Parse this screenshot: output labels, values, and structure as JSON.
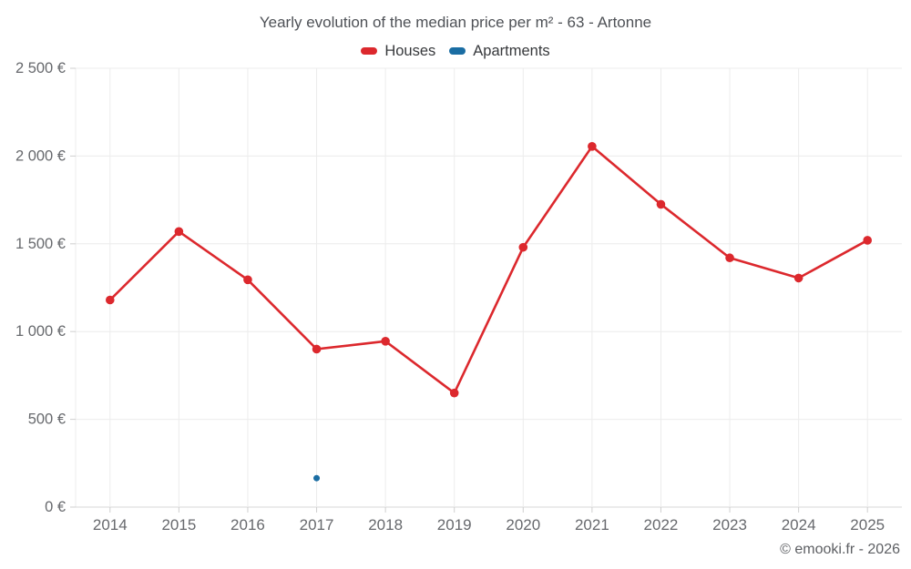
{
  "footer": "© emooki.fr - 2026",
  "chart_data": {
    "type": "line",
    "title": "Yearly evolution of the median price per m² - 63 - Artonne",
    "categories": [
      "2014",
      "2015",
      "2016",
      "2017",
      "2018",
      "2019",
      "2020",
      "2021",
      "2022",
      "2023",
      "2024",
      "2025"
    ],
    "series": [
      {
        "name": "Houses",
        "color": "#dc282d",
        "values": [
          1180,
          1570,
          1295,
          900,
          945,
          650,
          1480,
          2055,
          1725,
          1420,
          1305,
          1520
        ]
      },
      {
        "name": "Apartments",
        "color": "#1a6da3",
        "values": [
          null,
          null,
          null,
          165,
          null,
          null,
          null,
          null,
          null,
          null,
          null,
          null
        ]
      }
    ],
    "ylim": [
      0,
      2500
    ],
    "ytick_values": [
      0,
      500,
      1000,
      1500,
      2000,
      2500
    ],
    "ytick_labels": [
      "0 €",
      "500 €",
      "1 000 €",
      "1 500 €",
      "2 000 €",
      "2 500 €"
    ],
    "xlabel": "",
    "ylabel": "",
    "grid": true,
    "legend_position": "top"
  }
}
